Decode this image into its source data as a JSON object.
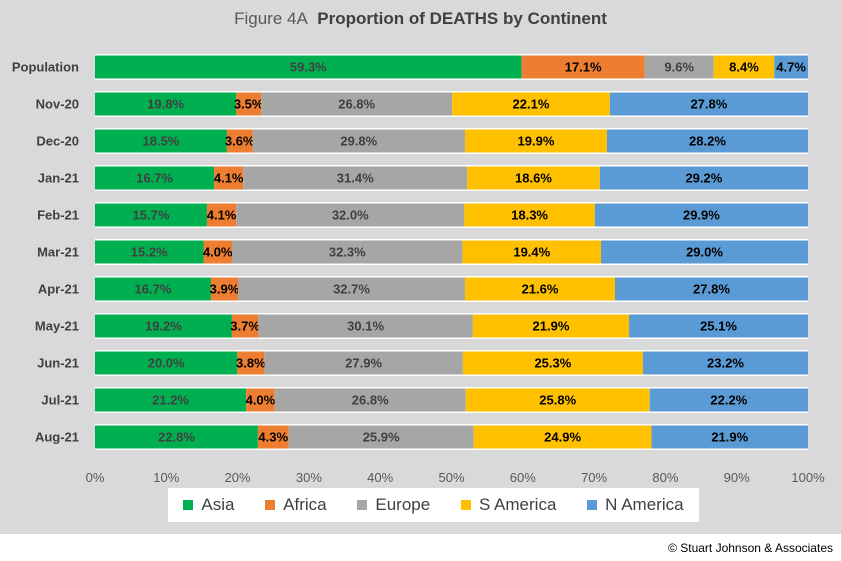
{
  "chart_data": {
    "type": "bar",
    "orientation": "horizontal",
    "stacked": "percent",
    "title_prefix": "Figure  4A",
    "title": "Proportion of DEATHS by Continent",
    "categories": [
      "Population",
      "Nov-20",
      "Dec-20",
      "Jan-21",
      "Feb-21",
      "Mar-21",
      "Apr-21",
      "May-21",
      "Jun-21",
      "Jul-21",
      "Aug-21"
    ],
    "series": [
      {
        "name": "Asia",
        "color": "#00b050",
        "label_color": "#404040",
        "values": [
          59.3,
          19.8,
          18.5,
          16.7,
          15.7,
          15.2,
          16.7,
          19.2,
          20.0,
          21.2,
          22.8
        ]
      },
      {
        "name": "Africa",
        "color": "#ed7d31",
        "label_color": "#000000",
        "values": [
          17.1,
          3.5,
          3.6,
          4.1,
          4.1,
          4.0,
          3.9,
          3.7,
          3.8,
          4.0,
          4.3
        ]
      },
      {
        "name": "Europe",
        "color": "#a6a6a6",
        "label_color": "#404040",
        "values": [
          9.6,
          26.8,
          29.8,
          31.4,
          32.0,
          32.3,
          32.7,
          30.1,
          27.9,
          26.8,
          25.9
        ]
      },
      {
        "name": "S America",
        "color": "#ffc000",
        "label_color": "#000000",
        "values": [
          8.4,
          22.1,
          19.9,
          18.6,
          18.3,
          19.4,
          21.6,
          21.9,
          25.3,
          25.8,
          24.9
        ]
      },
      {
        "name": "N America",
        "color": "#5b9bd5",
        "label_color": "#000000",
        "values": [
          4.7,
          27.8,
          28.2,
          29.2,
          29.9,
          29.0,
          27.8,
          25.1,
          23.2,
          22.2,
          21.9
        ]
      }
    ],
    "xlim": [
      0,
      100
    ],
    "xticks": [
      "0%",
      "10%",
      "20%",
      "30%",
      "40%",
      "50%",
      "60%",
      "70%",
      "80%",
      "90%",
      "100%"
    ],
    "grid": "horizontal bands",
    "legend_position": "bottom"
  },
  "footer": {
    "copyright": "© Stuart Johnson & Associates"
  }
}
